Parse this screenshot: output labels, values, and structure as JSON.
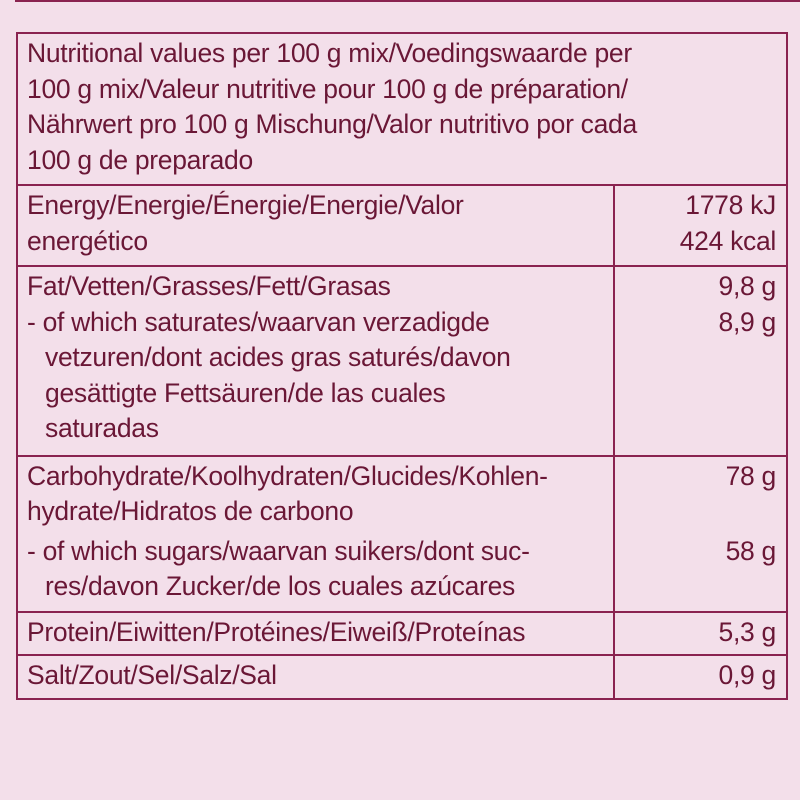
{
  "header_lines": [
    "Nutritional values per 100 g mix/Voedingswaarde per",
    "100 g mix/Valeur nutritive pour 100 g de préparation/",
    "Nährwert pro 100 g Mischung/Valor nutritivo por cada",
    "100 g de preparado"
  ],
  "rows": [
    {
      "label_lines": [
        "Energy/Energie/Énergie/Energie/Valor",
        "energético"
      ],
      "values": [
        "1778 kJ",
        "424 kcal"
      ]
    },
    {
      "label_lines": [
        "Fat/Vetten/Grasses/Fett/Grasas"
      ],
      "values": [
        "9,8 g"
      ],
      "sub_lines": [
        "- of which saturates/waarvan verzadigde",
        "vetzuren/dont acides gras saturés/davon",
        "gesättigte Fettsäuren/de las cuales",
        "saturadas"
      ],
      "sub_value": "8,9 g"
    },
    {
      "label_lines": [
        "Carbohydrate/Koolhydraten/Glucides/Kohlen-",
        "hydrate/Hidratos de carbono"
      ],
      "values": [
        "78 g"
      ],
      "sub_lines": [
        "- of which sugars/waarvan suikers/dont suc-",
        "res/davon Zucker/de los cuales azúcares"
      ],
      "sub_value": "58 g"
    },
    {
      "label_lines": [
        "Protein/Eiwitten/Protéines/Eiweiß/Proteínas"
      ],
      "values": [
        "5,3 g"
      ]
    },
    {
      "label_lines": [
        "Salt/Zout/Sel/Salz/Sal"
      ],
      "values": [
        "0,9 g"
      ]
    }
  ],
  "colors": {
    "background": "#f3dfea",
    "text": "#6a1736",
    "border": "#8a2350"
  }
}
